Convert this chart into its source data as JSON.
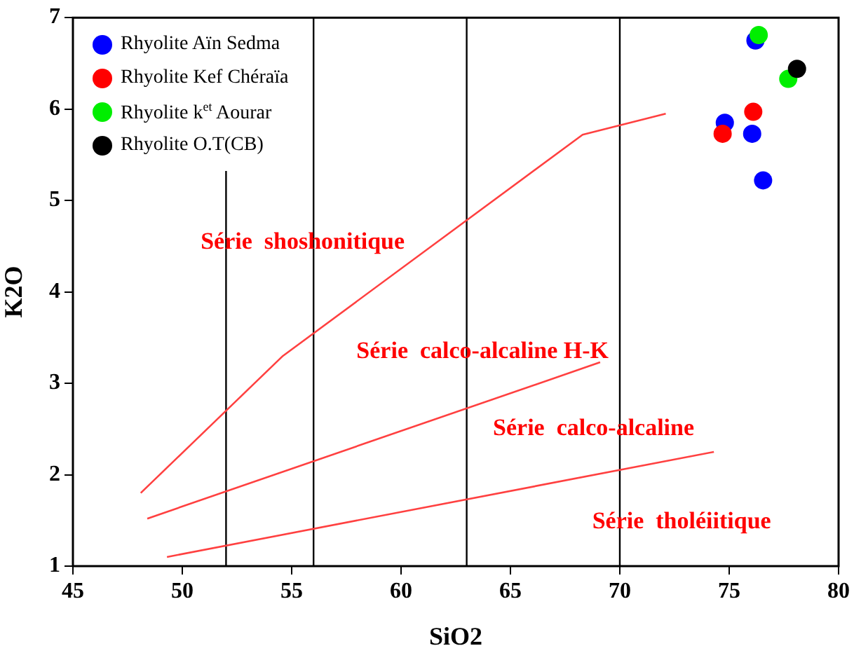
{
  "chart_data": {
    "type": "scatter",
    "xlabel": "SiO2",
    "ylabel": "K2O",
    "xlim": [
      45,
      80
    ],
    "xticks": [
      45,
      50,
      55,
      60,
      65,
      70,
      75,
      80
    ],
    "ylim": [
      1,
      7
    ],
    "yticks": [
      1,
      2,
      3,
      4,
      5,
      6,
      7
    ],
    "grid": false,
    "legend": "top left",
    "marker": "circle",
    "series": [
      {
        "name": "Rhyolite Aïn Sedma",
        "color": "#0000ff",
        "x": [
          76.2,
          74.8,
          76.05,
          76.55
        ],
        "values": [
          6.75,
          5.85,
          5.73,
          5.22
        ]
      },
      {
        "name": "Rhyolite Kef Chéraïa",
        "color": "#ff0000",
        "x": [
          76.1,
          74.7
        ],
        "values": [
          5.97,
          5.73
        ]
      },
      {
        "name": "Rhyolite k$^{et}$ Aourar",
        "color": "#00ee00",
        "x": [
          76.35,
          77.7
        ],
        "values": [
          6.81,
          6.33
        ]
      },
      {
        "name": "Rhyolite O.T(CB)",
        "color": "#000000",
        "x": [
          78.1
        ],
        "values": [
          6.44
        ]
      },
      {
        "type": "line",
        "color": "#ff4040",
        "marker": "none",
        "x": [
          48.1,
          54.6,
          68.3,
          72.1
        ],
        "values": [
          1.8,
          3.3,
          5.72,
          5.95
        ]
      },
      {
        "type": "line",
        "color": "#ff4040",
        "marker": "none",
        "x": [
          48.4,
          69.1
        ],
        "values": [
          1.52,
          3.23
        ]
      },
      {
        "type": "line",
        "color": "#ff4040",
        "marker": "none",
        "x": [
          49.3,
          74.3
        ],
        "values": [
          1.1,
          2.25
        ]
      }
    ],
    "ref_lines": [
      {
        "axis": "x",
        "value": 52,
        "color": "#000000"
      },
      {
        "axis": "x",
        "value": 56,
        "color": "#000000"
      },
      {
        "axis": "x",
        "value": 63,
        "color": "#000000"
      },
      {
        "axis": "x",
        "value": 70,
        "color": "#000000"
      }
    ],
    "annotations": [
      "Série  shoshonitique",
      "Série  calco-alcaline H-K",
      "Série  calco-alcaline",
      "Série  tholéiitique"
    ]
  }
}
